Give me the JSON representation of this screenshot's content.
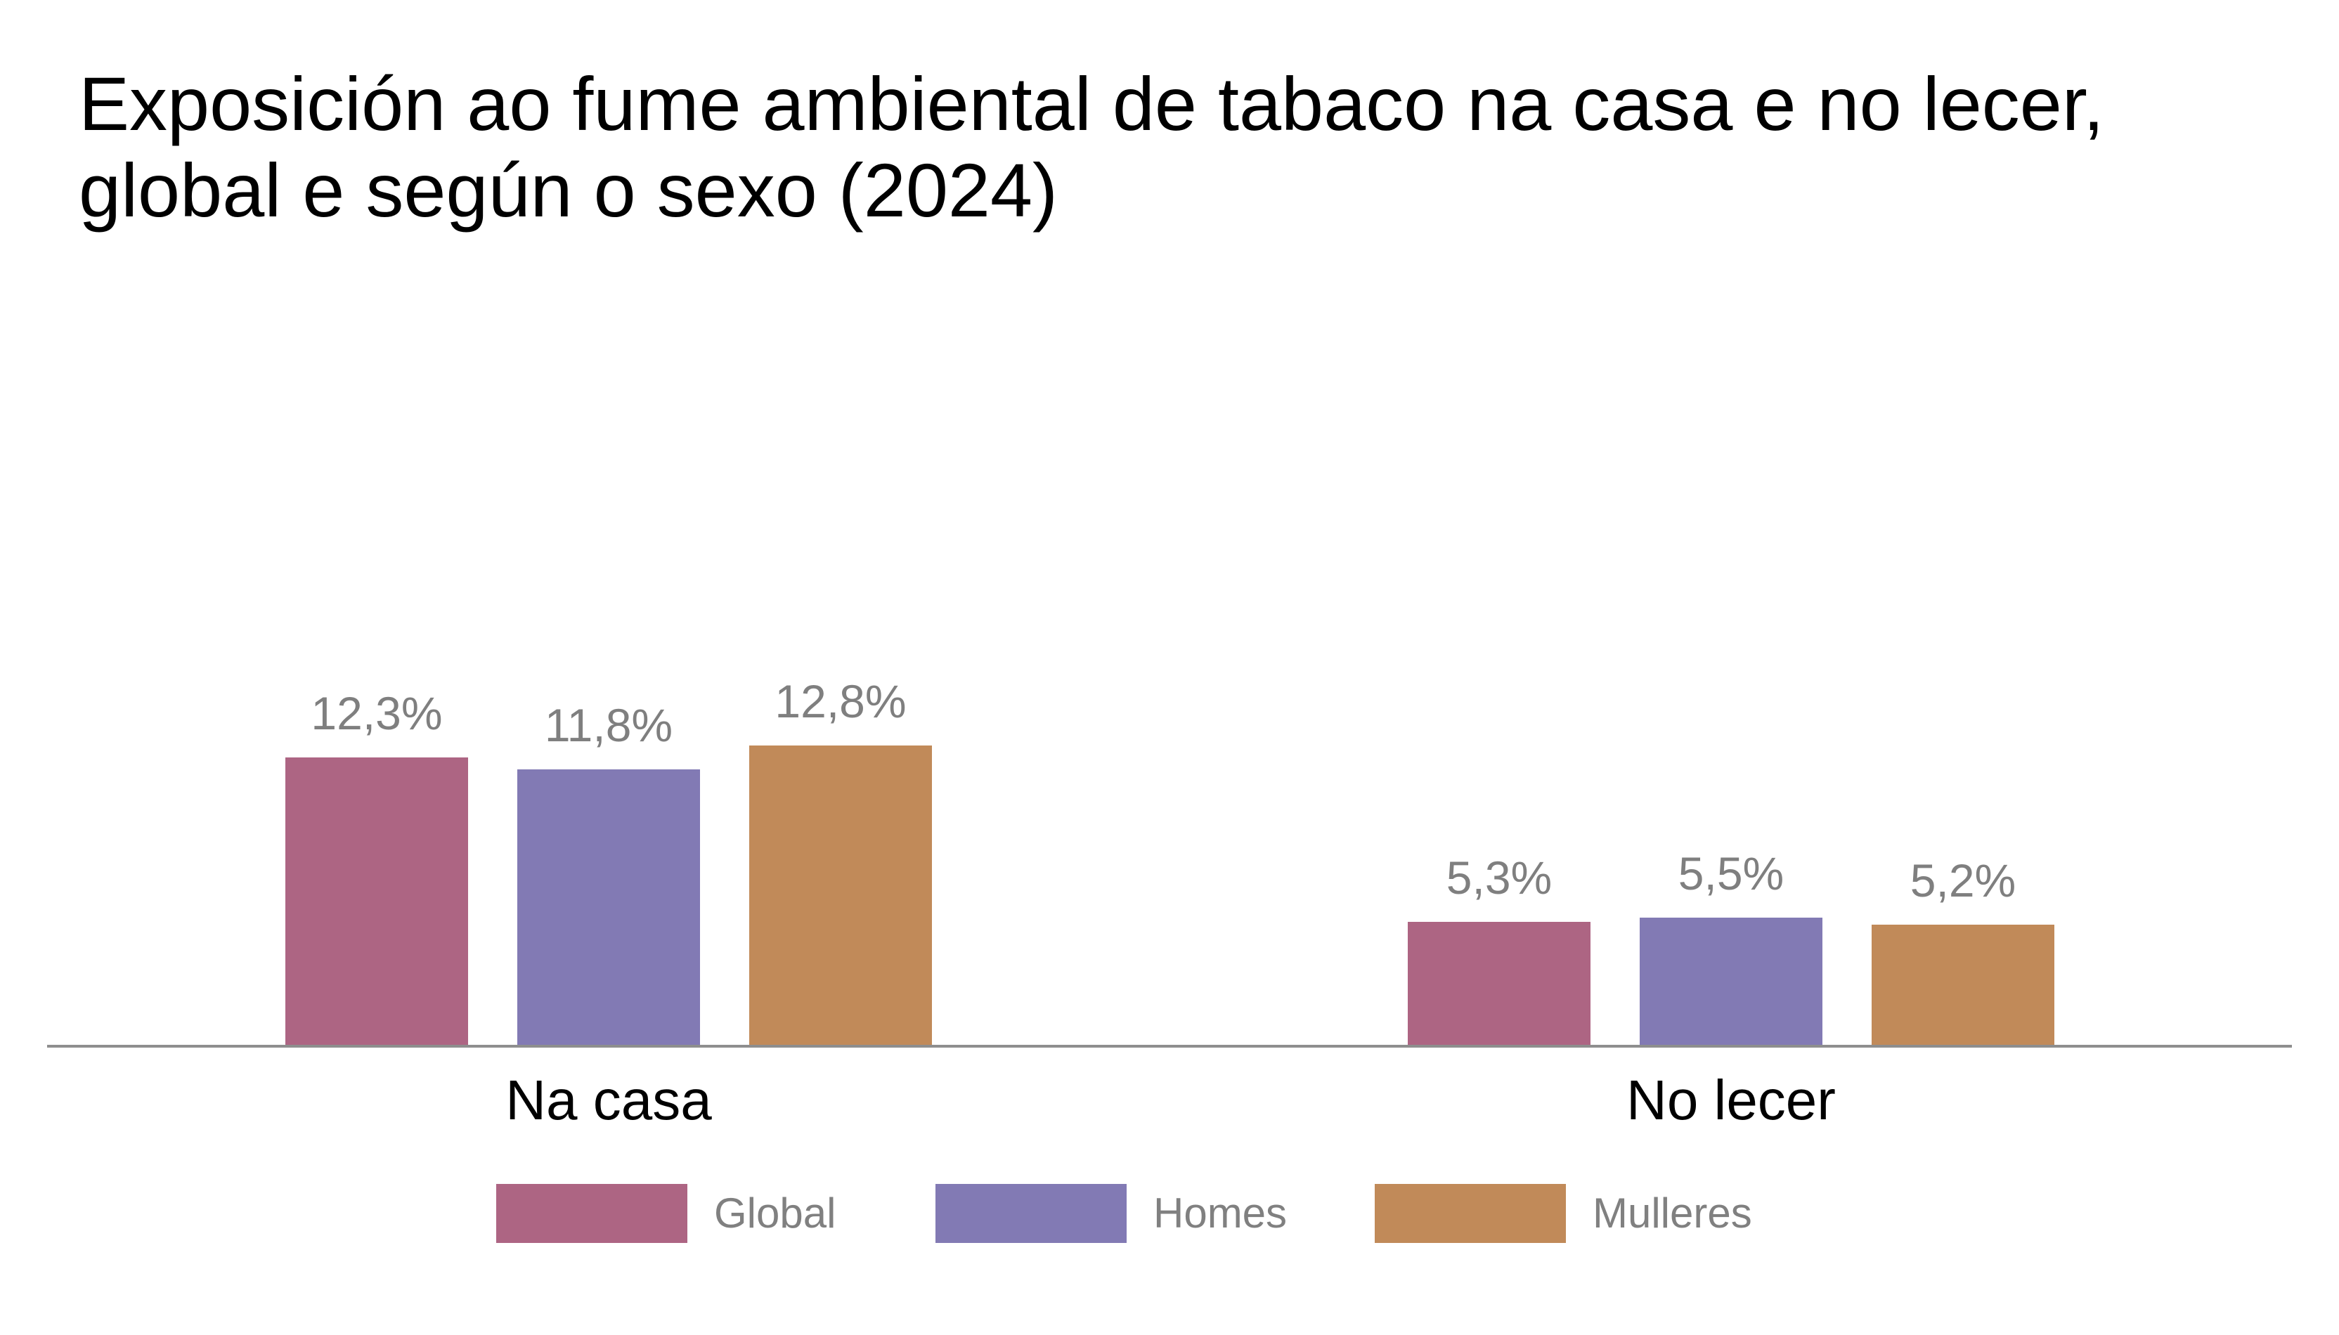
{
  "chart_data": {
    "type": "bar",
    "title": "Exposición ao fume ambiental de tabaco na casa e no lecer, global e según o sexo (2024)",
    "categories": [
      "Na casa",
      "No lecer"
    ],
    "series": [
      {
        "name": "Global",
        "color": "#AD6583",
        "values": [
          12.3,
          5.3
        ],
        "display": [
          "12,3%",
          "5,3%"
        ]
      },
      {
        "name": "Homes",
        "color": "#827AB4",
        "values": [
          11.8,
          5.5
        ],
        "display": [
          "11,8%",
          "5,5%"
        ]
      },
      {
        "name": "Mulleres",
        "color": "#C18A59",
        "values": [
          12.8,
          5.2
        ],
        "display": [
          "12,8%",
          "5,2%"
        ]
      }
    ],
    "value_suffix": "%",
    "decimal_separator": ",",
    "ylim": [
      0,
      14
    ],
    "grid": false,
    "y_axis_visible": false,
    "axis_line_color": "#8E8E8E",
    "data_label_color": "#7F7F7F",
    "category_label_color": "#000000",
    "legend_position": "bottom",
    "legend_label_color": "#808080",
    "background_color": "#FFFFFF",
    "title_color": "#000000"
  }
}
